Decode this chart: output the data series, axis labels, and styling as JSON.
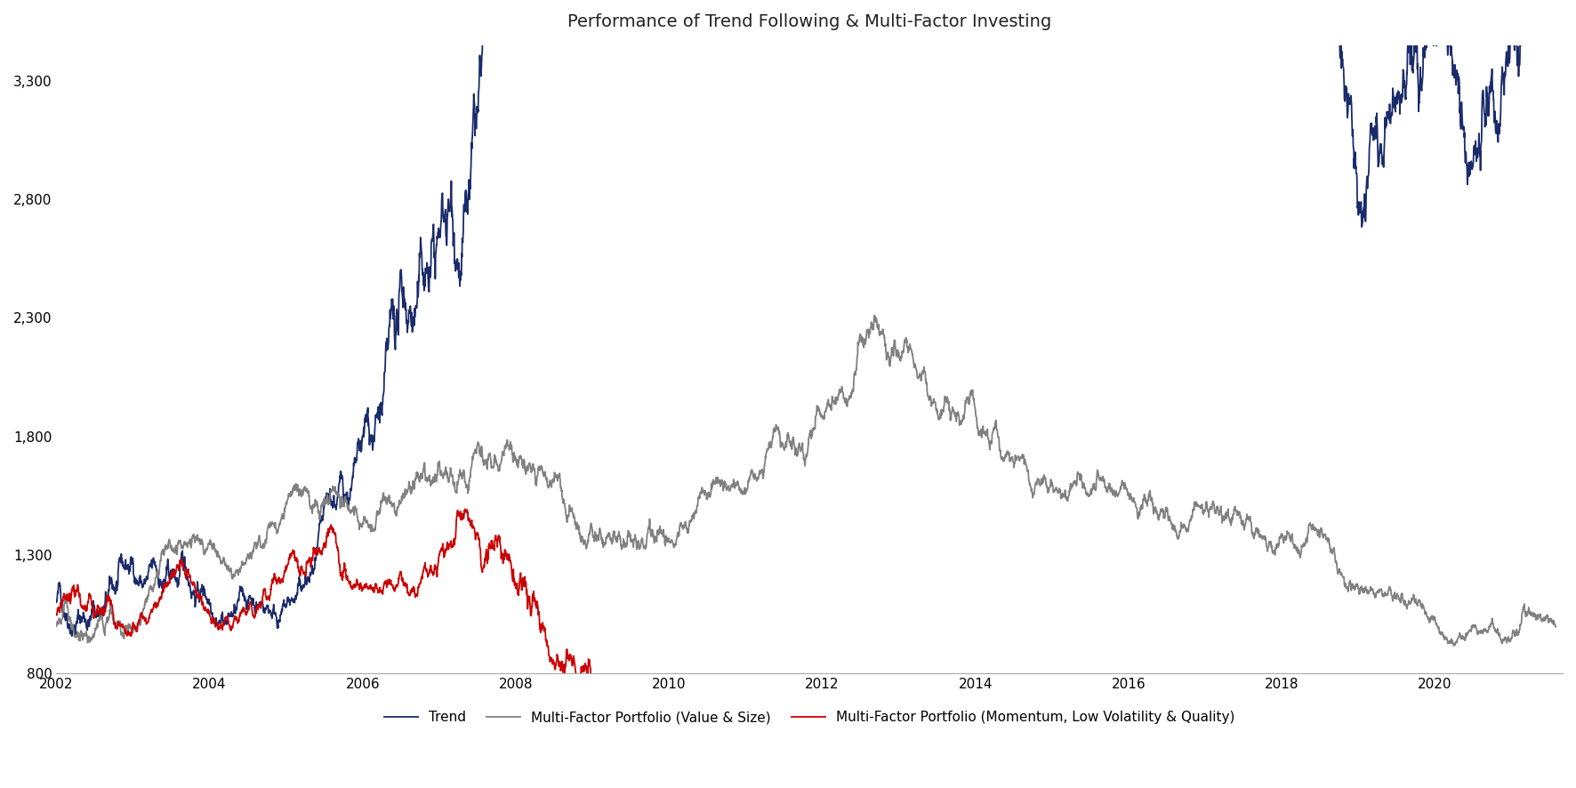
{
  "title": "Performance of Trend Following & Multi-Factor Investing",
  "title_fontsize": 14,
  "background_color": "#ffffff",
  "line_colors": {
    "trend": "#1a2b6b",
    "value_size": "#808080",
    "momentum": "#cc0000"
  },
  "legend_labels": {
    "trend": "Trend",
    "value_size": "Multi-Factor Portfolio (Value & Size)",
    "momentum": "Multi-Factor Portfolio (Momentum, Low Volatility & Quality)"
  },
  "ylabel_ticks": [
    800,
    1300,
    1800,
    2300,
    2800,
    3300
  ],
  "xlabel_ticks": [
    2002,
    2004,
    2006,
    2008,
    2010,
    2012,
    2014,
    2016,
    2018,
    2020
  ],
  "ylim": [
    800,
    3450
  ],
  "linewidth": 1.3
}
